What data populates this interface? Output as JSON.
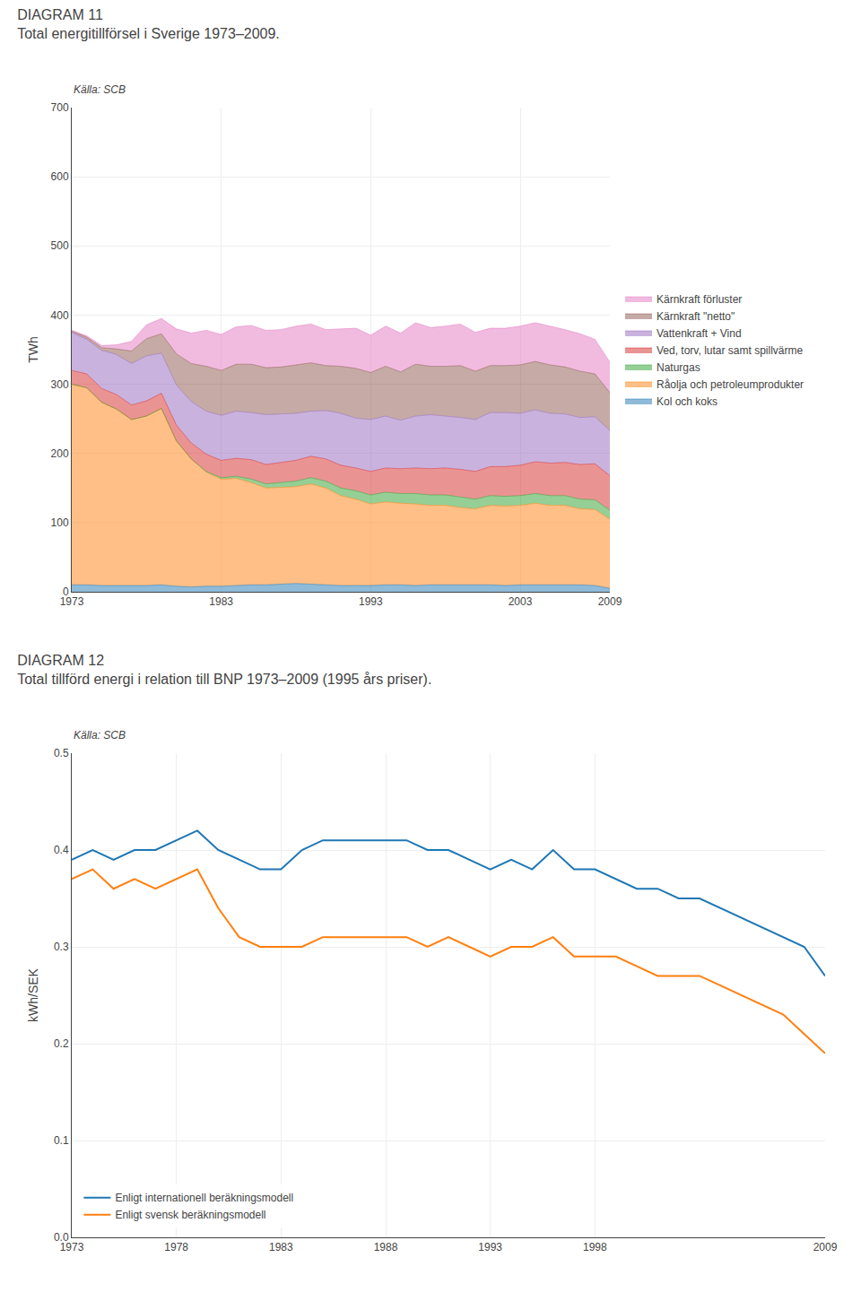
{
  "chart_data": [
    {
      "type": "area",
      "title": "DIAGRAM 11",
      "subtitle": "Total energitillförsel i Sverige 1973–2009.",
      "annotations": [
        "Källa: SCB"
      ],
      "x": [
        1973,
        1974,
        1975,
        1976,
        1977,
        1978,
        1979,
        1980,
        1981,
        1982,
        1983,
        1984,
        1985,
        1986,
        1987,
        1988,
        1989,
        1990,
        1991,
        1992,
        1993,
        1994,
        1995,
        1996,
        1997,
        1998,
        1999,
        2000,
        2001,
        2002,
        2003,
        2004,
        2005,
        2006,
        2007,
        2008,
        2009
      ],
      "series": [
        {
          "name": "Kol och koks",
          "values": [
            10,
            10,
            9,
            9,
            9,
            9,
            10,
            8,
            7,
            8,
            8,
            9,
            10,
            10,
            11,
            12,
            11,
            10,
            9,
            9,
            9,
            10,
            10,
            9,
            10,
            10,
            10,
            10,
            10,
            9,
            10,
            10,
            10,
            10,
            10,
            9,
            5
          ]
        },
        {
          "name": "Råolja och petroleumprodukter",
          "values": [
            290,
            285,
            265,
            255,
            240,
            245,
            255,
            210,
            185,
            165,
            155,
            155,
            148,
            140,
            140,
            140,
            145,
            140,
            130,
            125,
            118,
            120,
            118,
            118,
            115,
            115,
            112,
            110,
            115,
            115,
            115,
            118,
            115,
            115,
            110,
            110,
            100
          ]
        },
        {
          "name": "Naturgas",
          "values": [
            0,
            0,
            0,
            0,
            0,
            0,
            0,
            0,
            0,
            1,
            2,
            3,
            5,
            6,
            7,
            8,
            9,
            10,
            11,
            12,
            13,
            14,
            14,
            15,
            15,
            15,
            15,
            14,
            14,
            14,
            14,
            14,
            14,
            14,
            14,
            14,
            13
          ]
        },
        {
          "name": "Ved, torv, lutar samt spillvärme",
          "values": [
            20,
            20,
            20,
            21,
            21,
            22,
            22,
            23,
            23,
            25,
            25,
            26,
            28,
            28,
            29,
            30,
            31,
            32,
            33,
            33,
            34,
            35,
            36,
            37,
            38,
            39,
            40,
            40,
            42,
            43,
            44,
            46,
            47,
            48,
            50,
            52,
            50
          ]
        },
        {
          "name": "Vattenkraft + Vind",
          "values": [
            55,
            50,
            55,
            58,
            60,
            65,
            58,
            58,
            60,
            62,
            65,
            68,
            68,
            72,
            70,
            68,
            65,
            70,
            75,
            72,
            75,
            75,
            70,
            75,
            78,
            75,
            75,
            75,
            78,
            78,
            75,
            75,
            72,
            70,
            68,
            68,
            65
          ]
        },
        {
          "name": "Kärnkraft \"netto\"",
          "values": [
            2,
            3,
            4,
            8,
            18,
            25,
            28,
            45,
            55,
            65,
            65,
            68,
            70,
            68,
            68,
            70,
            70,
            65,
            68,
            72,
            68,
            72,
            70,
            75,
            70,
            72,
            75,
            70,
            68,
            68,
            70,
            70,
            70,
            68,
            67,
            62,
            55
          ]
        },
        {
          "name": "Kärnkraft förluster",
          "values": [
            1,
            2,
            3,
            6,
            14,
            20,
            22,
            36,
            44,
            52,
            52,
            54,
            56,
            54,
            54,
            56,
            56,
            52,
            54,
            58,
            54,
            58,
            56,
            60,
            56,
            58,
            60,
            56,
            54,
            54,
            56,
            56,
            56,
            54,
            54,
            50,
            44
          ]
        }
      ],
      "stacked": true,
      "xlim": [
        1973,
        2009
      ],
      "xticks": [
        1973,
        1983,
        1993,
        2003,
        2009
      ],
      "ylim": [
        0,
        700
      ],
      "yticks": [
        0,
        100,
        200,
        300,
        400,
        500,
        600,
        700
      ],
      "ylabel": "TWh",
      "grid": true,
      "legend": "right"
    },
    {
      "type": "line",
      "title": "DIAGRAM 12",
      "subtitle": "Total tillförd energi i relation till BNP 1973–2009 (1995 års priser).",
      "annotations": [
        "Källa: SCB"
      ],
      "x": [
        1973,
        1974,
        1975,
        1976,
        1977,
        1978,
        1979,
        1980,
        1981,
        1982,
        1983,
        1984,
        1985,
        1986,
        1987,
        1988,
        1989,
        1990,
        1991,
        1992,
        1993,
        1994,
        1995,
        1996,
        1997,
        1998,
        1999,
        2000,
        2001,
        2002,
        2003,
        2004,
        2005,
        2006,
        2007,
        2008,
        2009
      ],
      "series": [
        {
          "name": "Enligt internationell beräkningsmodell",
          "values": [
            0.39,
            0.4,
            0.39,
            0.4,
            0.4,
            0.41,
            0.42,
            0.4,
            0.39,
            0.38,
            0.38,
            0.4,
            0.41,
            0.41,
            0.41,
            0.41,
            0.41,
            0.4,
            0.4,
            0.39,
            0.38,
            0.39,
            0.38,
            0.4,
            0.38,
            0.38,
            0.37,
            0.36,
            0.36,
            0.35,
            0.35,
            0.34,
            0.33,
            0.32,
            0.31,
            0.3,
            0.27
          ]
        },
        {
          "name": "Enligt svensk beräkningsmodell",
          "values": [
            0.37,
            0.38,
            0.36,
            0.37,
            0.36,
            0.37,
            0.38,
            0.34,
            0.31,
            0.3,
            0.3,
            0.3,
            0.31,
            0.31,
            0.31,
            0.31,
            0.31,
            0.3,
            0.31,
            0.3,
            0.29,
            0.3,
            0.3,
            0.31,
            0.29,
            0.29,
            0.29,
            0.28,
            0.27,
            0.27,
            0.27,
            0.26,
            0.25,
            0.24,
            0.23,
            0.21,
            0.19
          ]
        }
      ],
      "xlim": [
        1973,
        2009
      ],
      "xticks": [
        1973,
        1978,
        1983,
        1988,
        1993,
        1998,
        2009
      ],
      "ylim": [
        0.0,
        0.5
      ],
      "yticks": [
        {
          "value": 0,
          "label": "0.0"
        },
        0.1,
        0.2,
        0.3,
        0.4,
        0.5
      ],
      "ylabel": "kWh/SEK",
      "grid": true,
      "legend": "lower left"
    }
  ]
}
